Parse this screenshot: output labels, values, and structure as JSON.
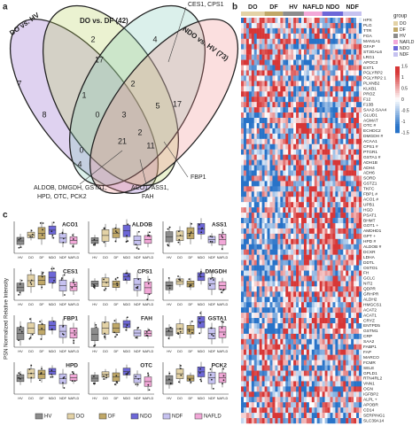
{
  "panels": {
    "a": "a",
    "b": "b",
    "c": "c"
  },
  "venn": {
    "sets": [
      "DO vs. HV",
      "DO vs. DF (42)",
      "NDO vs. HV (73)"
    ],
    "counts": [
      "8",
      "2",
      "4",
      "7",
      "17",
      "17",
      "5",
      "1",
      "2",
      "3",
      "21",
      "11",
      "0",
      "0",
      "4",
      "2"
    ],
    "callouts": [
      "CES1, CPS1",
      "FBP1",
      "ALDOB, DMGDH, GSTA1,",
      "HPD, OTC, PCK2",
      "ACO1, ASS1,",
      "FAH"
    ]
  },
  "heatmap": {
    "groups": [
      "DO",
      "DF",
      "HV",
      "NAFLD",
      "NDO",
      "NDF"
    ],
    "legend_title": "group",
    "colorbar": [
      "1.5",
      "1",
      "0.5",
      "0",
      "-0.5",
      "-1",
      "-1.5"
    ],
    "rows": [
      "HPX",
      "PLG",
      "TTR",
      "FGA",
      "MAN1A1",
      "GFAP",
      "ST3GAL6",
      "LRG1",
      "APOC3",
      "EXT1",
      "PGLYRP2",
      "PGLYRP2 1",
      "PLXNB2",
      "KLKB1",
      "PROZ",
      "F12",
      "F13B",
      "SAA2-SAA4",
      "GLUD1",
      "AGMAT",
      "OTC #",
      "ECHDC2",
      "DMGDH #",
      "ACAA1",
      "CPS1 #",
      "PTGR1",
      "GSTA1 #",
      "ADH1B",
      "ADH4",
      "ADH6",
      "SORD",
      "GSTZ1",
      "TKFC",
      "FBP1 #",
      "ACO1 #",
      "UPB1",
      "HGD",
      "PSAT1",
      "BHMT",
      "GOT1 +",
      "AMDHD1",
      "GPT +",
      "HPD #",
      "ALDOB #",
      "DCXR",
      "LDHA",
      "DDTL",
      "OSTO1",
      "FH",
      "GCLC",
      "NIT2",
      "QDPR",
      "GRHPR",
      "ALDH2",
      "HMGCS1",
      "ACAT2",
      "ACAT1",
      "CRYZ",
      "ENTPD5",
      "GSTM1",
      "CRP",
      "SAA2",
      "FABP1",
      "FAP",
      "MARCO",
      "FCMR",
      "SELE",
      "GPLD1",
      "RTN4RL2",
      "VNN1",
      "OGN",
      "IGFBP2",
      "ALPL +",
      "APOBR",
      "CD14",
      "SERPING1",
      "SLC39A14"
    ]
  },
  "boxplots": {
    "y_label": "PSN Normalized Relative Intensity",
    "titles": [
      "ACO1",
      "ALDOB",
      "ASS1",
      "CES1",
      "CPS1",
      "DMGDH",
      "FBP1",
      "FAH",
      "GSTA1",
      "HPD",
      "OTC",
      "PCK2"
    ],
    "groups": [
      "HV",
      "DO",
      "DF",
      "NDO",
      "NDF",
      "NAFLD"
    ],
    "colors": [
      "#8c8c8c",
      "#e3d2a6",
      "#c0a868",
      "#6d67d8",
      "#c6c2f0",
      "#f2a8d8"
    ]
  }
}
